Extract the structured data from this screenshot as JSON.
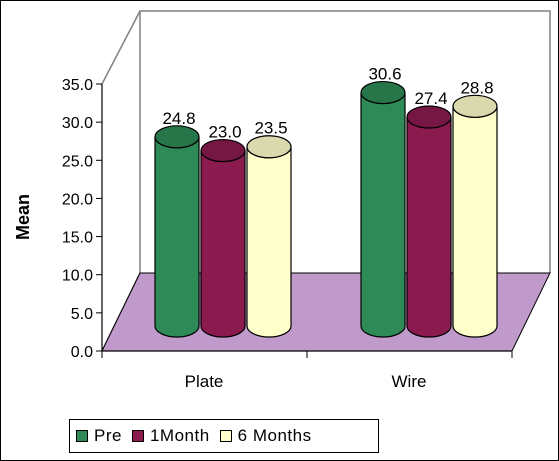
{
  "chart_data": {
    "type": "bar",
    "style": "3d-cylinder",
    "categories": [
      "Plate",
      "Wire"
    ],
    "series": [
      {
        "name": "Pre",
        "values": [
          24.8,
          30.6
        ],
        "color": "#2E8B57"
      },
      {
        "name": "1Month",
        "values": [
          23.0,
          27.4
        ],
        "color": "#8B1A4F"
      },
      {
        "name": "6 Months",
        "values": [
          23.5,
          28.8
        ],
        "color": "#FFFFCC"
      }
    ],
    "data_labels": [
      [
        "24.8",
        "30.6"
      ],
      [
        "23.0",
        "27.4"
      ],
      [
        "23.5",
        "28.8"
      ]
    ],
    "ylabel": "Mean",
    "xlabel": "",
    "ylim": [
      0,
      35
    ],
    "yticks": [
      "0.0",
      "5.0",
      "10.0",
      "15.0",
      "20.0",
      "25.0",
      "30.0",
      "35.0"
    ],
    "floor_color": "#C09ACB",
    "legend_position": "bottom"
  }
}
